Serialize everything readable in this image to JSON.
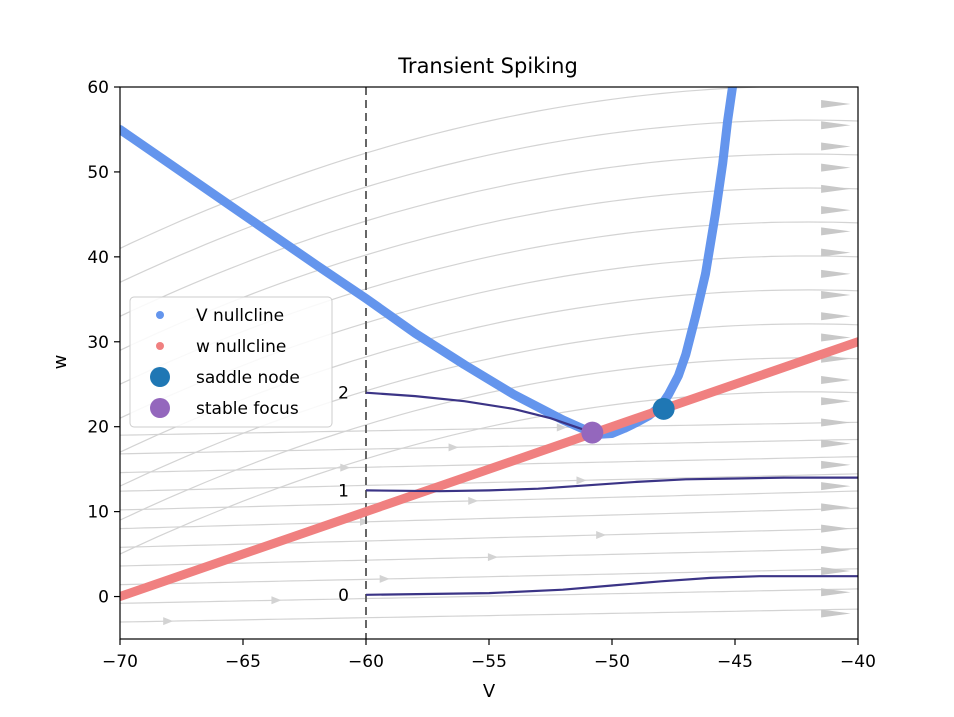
{
  "chart_data": {
    "type": "phase_portrait",
    "title": "Transient Spiking",
    "xlabel": "V",
    "ylabel": "w",
    "xlim": [
      -70,
      -40
    ],
    "ylim": [
      -5,
      60
    ],
    "xticks": [
      -70,
      -65,
      -60,
      -55,
      -50,
      -45,
      -40
    ],
    "yticks": [
      0,
      10,
      20,
      30,
      40,
      50,
      60
    ],
    "xtick_labels": [
      "−70",
      "−65",
      "−60",
      "−55",
      "−50",
      "−45",
      "−40"
    ],
    "ytick_labels": [
      "0",
      "10",
      "20",
      "30",
      "40",
      "50",
      "60"
    ],
    "grid": false,
    "legend_position": "center-left",
    "colors": {
      "v_nullcline": "#6495ed",
      "w_nullcline": "#f08080",
      "saddle_node": "#1f77b4",
      "stable_focus": "#9467bd",
      "trajectory": "#3b3486",
      "streamline": "#d3d3d3",
      "reset_line": "#666666"
    },
    "series": [
      {
        "name": "V nullcline",
        "x": [
          -70,
          -68,
          -66,
          -64,
          -62,
          -60,
          -58,
          -56,
          -54,
          -52,
          -51,
          -50.5,
          -50,
          -49.5,
          -49,
          -48.5,
          -48,
          -47.7,
          -47.3,
          -47,
          -46.6,
          -46.2,
          -45.8,
          -45.5,
          -45.3,
          -45.1
        ],
        "y": [
          55,
          51,
          47,
          43,
          39,
          35.1,
          31,
          27.3,
          23.8,
          20.8,
          19.5,
          19.1,
          19.2,
          19.8,
          20.5,
          21.3,
          22.5,
          23.8,
          26,
          28.5,
          33,
          38,
          45,
          51,
          56,
          60
        ]
      },
      {
        "name": "w nullcline",
        "x": [
          -70,
          -40
        ],
        "y": [
          0,
          30
        ]
      }
    ],
    "points": [
      {
        "name": "saddle node",
        "x": -47.9,
        "y": 22.1
      },
      {
        "name": "stable focus",
        "x": -50.8,
        "y": 19.3
      }
    ],
    "trajectories": [
      {
        "label": "0",
        "x": [
          -60,
          -55,
          -52,
          -50,
          -48,
          -46,
          -44,
          -42,
          -40
        ],
        "y": [
          0.2,
          0.4,
          0.8,
          1.3,
          1.8,
          2.2,
          2.4,
          2.4,
          2.4
        ]
      },
      {
        "label": "1",
        "x": [
          -60,
          -57,
          -55,
          -53,
          -51,
          -49,
          -47,
          -45,
          -43,
          -40
        ],
        "y": [
          12.5,
          12.4,
          12.5,
          12.7,
          13.1,
          13.5,
          13.8,
          13.9,
          14,
          14
        ]
      },
      {
        "label": "2",
        "x": [
          -60,
          -58,
          -56,
          -54,
          -52.5,
          -51.5,
          -51,
          -50.8
        ],
        "y": [
          24,
          23.6,
          23,
          22.1,
          21,
          20,
          19.5,
          19.3
        ]
      }
    ],
    "reset_line_v": -60,
    "streamplot_density": "background"
  }
}
